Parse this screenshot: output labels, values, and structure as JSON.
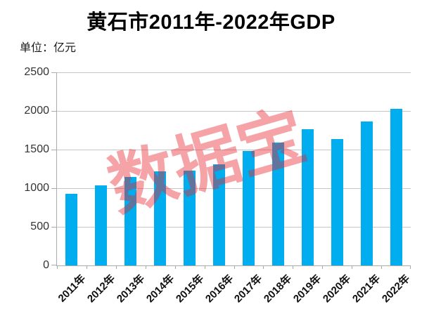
{
  "header": {
    "title": "黄石市2011年-2022年GDP",
    "unit_label": "单位：亿元"
  },
  "watermark": {
    "text": "数据宝",
    "color_rgba": "rgba(230,35,45,0.42)"
  },
  "chart_data": {
    "type": "bar",
    "title": "黄石市2011年-2022年GDP",
    "xlabel": "",
    "ylabel": "单位：亿元",
    "categories": [
      "2011年",
      "2012年",
      "2013年",
      "2014年",
      "2015年",
      "2016年",
      "2017年",
      "2018年",
      "2019年",
      "2020年",
      "2021年",
      "2022年"
    ],
    "values": [
      925,
      1035,
      1145,
      1215,
      1225,
      1305,
      1480,
      1590,
      1765,
      1640,
      1865,
      2030
    ],
    "ylim": [
      0,
      2500
    ],
    "yticks": [
      0,
      500,
      1000,
      1500,
      2000,
      2500
    ],
    "grid": true,
    "legend": false,
    "bar_color": "#00AEEF",
    "gridline_color": "#C6C6C6",
    "axis_color": "#ABABAB"
  }
}
